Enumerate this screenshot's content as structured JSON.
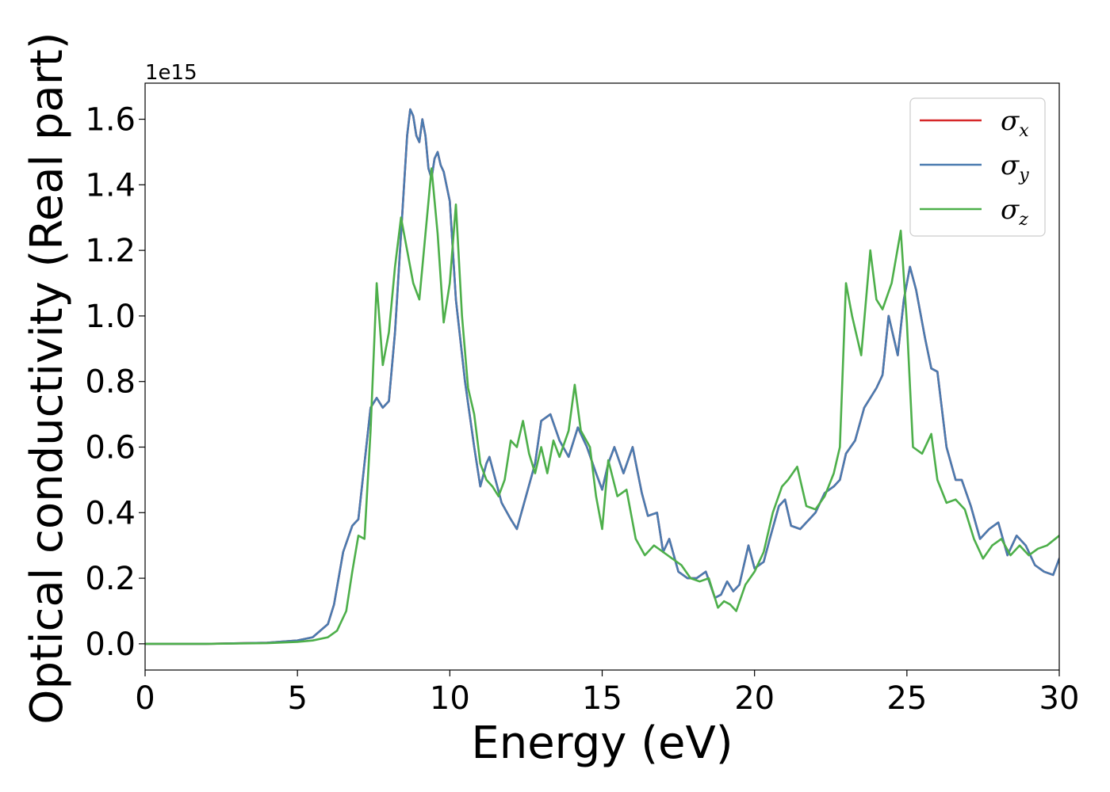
{
  "chart_data": {
    "type": "line",
    "xlabel": "Energy (eV)",
    "ylabel": "Optical conductivity (Real part)",
    "y_offset_label": "1e15",
    "xlim": [
      0,
      30
    ],
    "ylim": [
      -0.08,
      1.71
    ],
    "y_scale_factor": 1000000000000000.0,
    "x_ticks": [
      0,
      5,
      10,
      15,
      20,
      25,
      30
    ],
    "x_tick_labels": [
      "0",
      "5",
      "10",
      "15",
      "20",
      "25",
      "30"
    ],
    "y_ticks": [
      0.0,
      0.2,
      0.4,
      0.6,
      0.8,
      1.0,
      1.2,
      1.4,
      1.6
    ],
    "y_tick_labels": [
      "0.0",
      "0.2",
      "0.4",
      "0.6",
      "0.8",
      "1.0",
      "1.2",
      "1.4",
      "1.6"
    ],
    "grid": false,
    "legend_position": "top-right",
    "series": [
      {
        "name": "σx",
        "symbol": "σ",
        "subscript": "x",
        "color": "#d62728",
        "x": [
          0,
          2,
          4,
          5,
          5.5,
          6,
          6.2,
          6.5,
          6.8,
          7.0,
          7.2,
          7.4,
          7.6,
          7.8,
          8.0,
          8.2,
          8.4,
          8.6,
          8.7,
          8.8,
          8.9,
          9.0,
          9.1,
          9.2,
          9.3,
          9.4,
          9.5,
          9.6,
          9.7,
          9.8,
          10.0,
          10.2,
          10.5,
          10.8,
          11.0,
          11.2,
          11.3,
          11.5,
          11.7,
          12.0,
          12.2,
          12.5,
          12.8,
          13.0,
          13.3,
          13.6,
          13.9,
          14.2,
          14.5,
          14.8,
          15.0,
          15.2,
          15.4,
          15.7,
          16.0,
          16.3,
          16.5,
          16.8,
          17.0,
          17.2,
          17.5,
          17.8,
          18.1,
          18.4,
          18.7,
          18.9,
          19.1,
          19.3,
          19.5,
          19.8,
          20.0,
          20.3,
          20.5,
          20.8,
          21.0,
          21.2,
          21.5,
          21.8,
          22.0,
          22.3,
          22.6,
          22.8,
          23.0,
          23.3,
          23.6,
          23.8,
          24.0,
          24.2,
          24.4,
          24.7,
          24.9,
          25.1,
          25.3,
          25.6,
          25.8,
          26.0,
          26.3,
          26.6,
          26.8,
          27.1,
          27.4,
          27.7,
          28.0,
          28.3,
          28.6,
          28.9,
          29.2,
          29.5,
          29.8,
          30.0
        ],
        "y": [
          0.0,
          0.0,
          0.003,
          0.01,
          0.02,
          0.06,
          0.12,
          0.28,
          0.36,
          0.38,
          0.55,
          0.72,
          0.75,
          0.72,
          0.74,
          0.95,
          1.25,
          1.55,
          1.63,
          1.61,
          1.55,
          1.53,
          1.6,
          1.55,
          1.45,
          1.42,
          1.48,
          1.5,
          1.46,
          1.44,
          1.35,
          1.05,
          0.8,
          0.6,
          0.48,
          0.55,
          0.57,
          0.5,
          0.43,
          0.38,
          0.35,
          0.45,
          0.55,
          0.68,
          0.7,
          0.62,
          0.57,
          0.66,
          0.6,
          0.52,
          0.47,
          0.55,
          0.6,
          0.52,
          0.6,
          0.46,
          0.39,
          0.4,
          0.28,
          0.32,
          0.22,
          0.2,
          0.2,
          0.22,
          0.14,
          0.15,
          0.19,
          0.16,
          0.18,
          0.3,
          0.23,
          0.25,
          0.32,
          0.42,
          0.44,
          0.36,
          0.35,
          0.38,
          0.4,
          0.46,
          0.48,
          0.5,
          0.58,
          0.62,
          0.72,
          0.75,
          0.78,
          0.82,
          1.0,
          0.88,
          1.05,
          1.15,
          1.08,
          0.93,
          0.84,
          0.83,
          0.6,
          0.5,
          0.5,
          0.42,
          0.32,
          0.35,
          0.37,
          0.27,
          0.33,
          0.3,
          0.24,
          0.22,
          0.21,
          0.26
        ],
        "line_width": 2.6
      },
      {
        "name": "σy",
        "symbol": "σ",
        "subscript": "y",
        "color": "#4a7bb0",
        "x": [
          0,
          2,
          4,
          5,
          5.5,
          6,
          6.2,
          6.5,
          6.8,
          7.0,
          7.2,
          7.4,
          7.6,
          7.8,
          8.0,
          8.2,
          8.4,
          8.6,
          8.7,
          8.8,
          8.9,
          9.0,
          9.1,
          9.2,
          9.3,
          9.4,
          9.5,
          9.6,
          9.7,
          9.8,
          10.0,
          10.2,
          10.5,
          10.8,
          11.0,
          11.2,
          11.3,
          11.5,
          11.7,
          12.0,
          12.2,
          12.5,
          12.8,
          13.0,
          13.3,
          13.6,
          13.9,
          14.2,
          14.5,
          14.8,
          15.0,
          15.2,
          15.4,
          15.7,
          16.0,
          16.3,
          16.5,
          16.8,
          17.0,
          17.2,
          17.5,
          17.8,
          18.1,
          18.4,
          18.7,
          18.9,
          19.1,
          19.3,
          19.5,
          19.8,
          20.0,
          20.3,
          20.5,
          20.8,
          21.0,
          21.2,
          21.5,
          21.8,
          22.0,
          22.3,
          22.6,
          22.8,
          23.0,
          23.3,
          23.6,
          23.8,
          24.0,
          24.2,
          24.4,
          24.7,
          24.9,
          25.1,
          25.3,
          25.6,
          25.8,
          26.0,
          26.3,
          26.6,
          26.8,
          27.1,
          27.4,
          27.7,
          28.0,
          28.3,
          28.6,
          28.9,
          29.2,
          29.5,
          29.8,
          30.0
        ],
        "y": [
          0.0,
          0.0,
          0.003,
          0.01,
          0.02,
          0.06,
          0.12,
          0.28,
          0.36,
          0.38,
          0.55,
          0.72,
          0.75,
          0.72,
          0.74,
          0.95,
          1.25,
          1.55,
          1.63,
          1.61,
          1.55,
          1.53,
          1.6,
          1.55,
          1.45,
          1.42,
          1.48,
          1.5,
          1.46,
          1.44,
          1.35,
          1.05,
          0.8,
          0.6,
          0.48,
          0.55,
          0.57,
          0.5,
          0.43,
          0.38,
          0.35,
          0.45,
          0.55,
          0.68,
          0.7,
          0.62,
          0.57,
          0.66,
          0.6,
          0.52,
          0.47,
          0.55,
          0.6,
          0.52,
          0.6,
          0.46,
          0.39,
          0.4,
          0.28,
          0.32,
          0.22,
          0.2,
          0.2,
          0.22,
          0.14,
          0.15,
          0.19,
          0.16,
          0.18,
          0.3,
          0.23,
          0.25,
          0.32,
          0.42,
          0.44,
          0.36,
          0.35,
          0.38,
          0.4,
          0.46,
          0.48,
          0.5,
          0.58,
          0.62,
          0.72,
          0.75,
          0.78,
          0.82,
          1.0,
          0.88,
          1.05,
          1.15,
          1.08,
          0.93,
          0.84,
          0.83,
          0.6,
          0.5,
          0.5,
          0.42,
          0.32,
          0.35,
          0.37,
          0.27,
          0.33,
          0.3,
          0.24,
          0.22,
          0.21,
          0.26
        ],
        "line_width": 2.6
      },
      {
        "name": "σz",
        "symbol": "σ",
        "subscript": "z",
        "color": "#4daf4a",
        "x": [
          0,
          2,
          4,
          5,
          5.5,
          6,
          6.3,
          6.6,
          6.8,
          7.0,
          7.2,
          7.4,
          7.6,
          7.8,
          8.0,
          8.2,
          8.4,
          8.6,
          8.8,
          9.0,
          9.2,
          9.4,
          9.6,
          9.8,
          10.0,
          10.2,
          10.4,
          10.6,
          10.8,
          11.0,
          11.2,
          11.4,
          11.6,
          11.8,
          12.0,
          12.2,
          12.4,
          12.6,
          12.8,
          13.0,
          13.2,
          13.4,
          13.6,
          13.9,
          14.1,
          14.3,
          14.6,
          14.8,
          15.0,
          15.2,
          15.5,
          15.8,
          16.1,
          16.4,
          16.7,
          17.0,
          17.3,
          17.6,
          17.9,
          18.2,
          18.5,
          18.8,
          19.0,
          19.2,
          19.4,
          19.7,
          20.0,
          20.3,
          20.6,
          20.9,
          21.1,
          21.4,
          21.7,
          22.0,
          22.3,
          22.6,
          22.8,
          23.0,
          23.2,
          23.5,
          23.8,
          24.0,
          24.2,
          24.5,
          24.8,
          25.0,
          25.2,
          25.5,
          25.8,
          26.0,
          26.3,
          26.6,
          26.9,
          27.2,
          27.5,
          27.8,
          28.1,
          28.4,
          28.7,
          29.0,
          29.3,
          29.6,
          30.0
        ],
        "y": [
          0.0,
          0.0,
          0.002,
          0.006,
          0.01,
          0.02,
          0.04,
          0.1,
          0.22,
          0.33,
          0.32,
          0.65,
          1.1,
          0.85,
          0.95,
          1.15,
          1.3,
          1.2,
          1.1,
          1.05,
          1.25,
          1.45,
          1.25,
          0.98,
          1.1,
          1.34,
          1.0,
          0.78,
          0.7,
          0.55,
          0.5,
          0.48,
          0.45,
          0.5,
          0.62,
          0.6,
          0.68,
          0.58,
          0.52,
          0.6,
          0.52,
          0.62,
          0.57,
          0.65,
          0.79,
          0.65,
          0.6,
          0.45,
          0.35,
          0.56,
          0.45,
          0.47,
          0.32,
          0.27,
          0.3,
          0.28,
          0.26,
          0.24,
          0.2,
          0.19,
          0.2,
          0.11,
          0.13,
          0.12,
          0.1,
          0.18,
          0.22,
          0.28,
          0.4,
          0.48,
          0.5,
          0.54,
          0.42,
          0.41,
          0.45,
          0.52,
          0.6,
          1.1,
          1.0,
          0.88,
          1.2,
          1.05,
          1.02,
          1.1,
          1.26,
          0.98,
          0.6,
          0.58,
          0.64,
          0.5,
          0.43,
          0.44,
          0.41,
          0.32,
          0.26,
          0.3,
          0.32,
          0.27,
          0.3,
          0.27,
          0.29,
          0.3,
          0.33
        ],
        "line_width": 2.6
      }
    ]
  }
}
